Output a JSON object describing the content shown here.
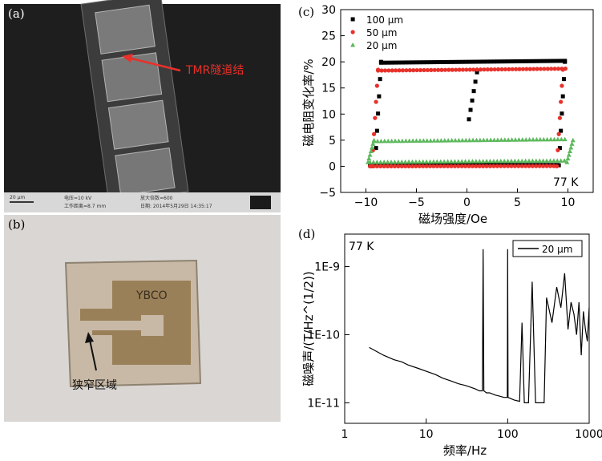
{
  "panels": {
    "a": {
      "label": "(a)",
      "annotation": "TMR隧道结",
      "scale_bar": "20 μm",
      "info_line1": "电压=10 kV",
      "info_line2": "放大倍数=600",
      "info_line3": "工作距离=8.7 mm",
      "info_line4": "日期: 2014年5月29日 14:35:17"
    },
    "b": {
      "label": "(b)",
      "material_label": "YBCO",
      "region_label": "狭窄区域"
    },
    "c": {
      "label": "(c)",
      "temperature": "77 K",
      "xlabel": "磁场强度/Oe",
      "ylabel": "磁电阻变化率/%"
    },
    "d": {
      "label": "(d)",
      "temperature": "77 K",
      "xlabel": "频率/Hz",
      "ylabel": "磁噪声/(T/Hz^(1/2))"
    }
  },
  "chart_data": [
    {
      "id": "c",
      "type": "scatter",
      "xlabel": "磁场强度/Oe",
      "ylabel": "磁电阻变化率/%",
      "xlim": [
        -12.5,
        12.5
      ],
      "ylim": [
        -5,
        30
      ],
      "xticks": [
        -10,
        -5,
        0,
        5,
        10
      ],
      "yticks": [
        -5,
        0,
        5,
        10,
        15,
        20,
        25,
        30
      ],
      "legend": "top-left",
      "annotation": "77 K",
      "series": [
        {
          "name": "100 μm",
          "color": "#000000",
          "marker": "square",
          "low_y": 0.2,
          "high_y": 20.0,
          "up_switch_x": 9.1,
          "down_switch_x": -9.1,
          "minor_switch_x": [
            0.2,
            1.0
          ],
          "minor_switch_y": [
            9,
            18
          ]
        },
        {
          "name": "50 μm",
          "color": "#e8312a",
          "marker": "circle",
          "low_y": 0.0,
          "high_y": 18.5,
          "up_switch_x": 8.9,
          "down_switch_x": -9.4
        },
        {
          "name": "20 μm",
          "color": "#5cb85c",
          "marker": "triangle",
          "low_y": 0.8,
          "high_y": 5.0,
          "up_switch_x": 9.9,
          "down_switch_x": -9.8
        }
      ]
    },
    {
      "id": "d",
      "type": "line",
      "xscale": "log",
      "yscale": "log",
      "xlabel": "频率/Hz",
      "ylabel": "磁噪声/(T/Hz^(1/2))",
      "xlim": [
        1,
        1000
      ],
      "ylim": [
        5e-12,
        3e-09
      ],
      "xticks": [
        "1",
        "10",
        "100",
        "1000"
      ],
      "yticks": [
        "1E-11",
        "1E-10",
        "1E-9"
      ],
      "legend": "top-right",
      "annotation": "77 K",
      "series": [
        {
          "name": "20 μm",
          "color": "#000000",
          "x": [
            2,
            3,
            4,
            5,
            6,
            8,
            10,
            13,
            16,
            20,
            25,
            30,
            35,
            40,
            45,
            49,
            50,
            51,
            55,
            60,
            70,
            80,
            90,
            99,
            100,
            101,
            120,
            140,
            150,
            160,
            180,
            200,
            220,
            250,
            280,
            300,
            350,
            400,
            450,
            500,
            550,
            600,
            650,
            700,
            750,
            800,
            850,
            900,
            950,
            1000
          ],
          "y": [
            6.5e-11,
            5e-11,
            4.3e-11,
            4e-11,
            3.6e-11,
            3.2e-11,
            2.9e-11,
            2.6e-11,
            2.3e-11,
            2.1e-11,
            1.9e-11,
            1.8e-11,
            1.7e-11,
            1.6e-11,
            1.5e-11,
            1.5e-11,
            1.8e-09,
            1.5e-11,
            1.4e-11,
            1.4e-11,
            1.3e-11,
            1.25e-11,
            1.2e-11,
            1.2e-11,
            1.8e-09,
            1.2e-11,
            1.1e-11,
            1.05e-11,
            1.5e-10,
            1e-11,
            1e-11,
            6e-10,
            1e-11,
            1e-11,
            1e-11,
            3.5e-10,
            1.5e-10,
            5e-10,
            2.5e-10,
            8e-10,
            1.2e-10,
            3e-10,
            2e-10,
            1e-10,
            3e-10,
            5e-11,
            2.2e-10,
            1.2e-10,
            8e-11,
            2.5e-10
          ]
        }
      ]
    }
  ]
}
